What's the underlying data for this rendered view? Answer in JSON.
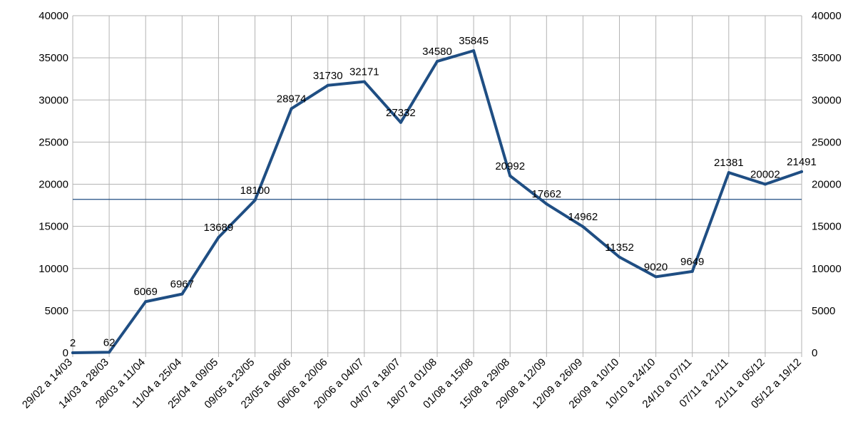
{
  "chart_data": {
    "type": "line",
    "categories": [
      "29/02 a 14/03",
      "14/03 a 28/03",
      "28/03 a 11/04",
      "11/04 a 25/04",
      "25/04 a 09/05",
      "09/05 a 23/05",
      "23/05 a 06/06",
      "06/06 a 20/06",
      "20/06 a 04/07",
      "04/07 a 18/07",
      "18/07 a 01/08",
      "01/08 a 15/08",
      "15/08 a 29/08",
      "29/08 a 12/09",
      "12/09 a 26/09",
      "26/09 a 10/10",
      "10/10 a 24/10",
      "24/10 a 07/11",
      "07/11 a 21/11",
      "21/11 a 05/12",
      "05/12 a 19/12"
    ],
    "values": [
      2,
      62,
      6069,
      6967,
      13689,
      18100,
      28974,
      31730,
      32171,
      27332,
      34580,
      35845,
      20992,
      17662,
      14962,
      11352,
      9020,
      9649,
      21381,
      20002,
      21491
    ],
    "reference_line": 18200,
    "ylim": [
      0,
      40000
    ],
    "yticks": [
      0,
      5000,
      10000,
      15000,
      20000,
      25000,
      30000,
      35000,
      40000
    ],
    "secondary_y_axis": true,
    "grid": true,
    "line_color": "#1f4e83",
    "title": "",
    "xlabel": "",
    "ylabel": ""
  }
}
